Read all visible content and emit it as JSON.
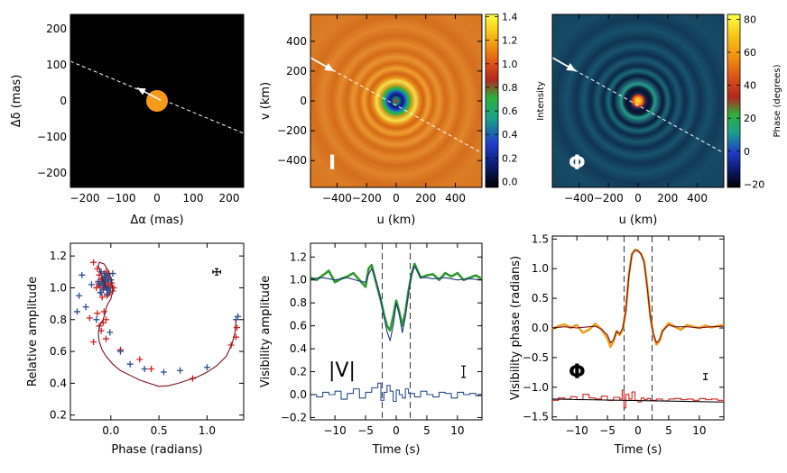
{
  "chart_data": [
    {
      "id": "sky",
      "type": "image",
      "xlabel": "Δα (mas)",
      "ylabel": "Δδ (mas)",
      "xlim": [
        -240,
        240
      ],
      "ylim": [
        -240,
        240
      ],
      "xticks": [
        -200,
        -100,
        0,
        100,
        200
      ],
      "yticks": [
        -200,
        -100,
        0,
        100,
        200
      ],
      "tick_labels_x": [
        "−200",
        "−100",
        "0",
        "100",
        "200"
      ],
      "tick_labels_y": [
        "−200",
        "−100",
        "0",
        "100",
        "200"
      ],
      "disk": {
        "cx": 0,
        "cy": 0,
        "r": 30,
        "color": "#f59a1a"
      },
      "path_line": [
        [
          -240,
          110
        ],
        [
          240,
          -90
        ]
      ],
      "arrow": {
        "from": [
          10,
          2
        ],
        "to": [
          -55,
          36
        ]
      },
      "background": "#000000"
    },
    {
      "id": "intensity",
      "type": "heatmap",
      "xlabel": "u (km)",
      "ylabel": "v (km)",
      "xlim": [
        -580,
        580
      ],
      "ylim": [
        -580,
        580
      ],
      "xticks": [
        -400,
        -200,
        0,
        200,
        400
      ],
      "yticks": [
        -400,
        -200,
        0,
        200,
        400
      ],
      "tick_labels_x": [
        "−400",
        "−200",
        "0",
        "200",
        "400"
      ],
      "tick_labels_y": [
        "−400",
        "−200",
        "0",
        "200",
        "400"
      ],
      "colorbar": {
        "label": "Intensity",
        "range": [
          -0.05,
          1.42
        ],
        "ticks": [
          1.4,
          1.2,
          1.0,
          0.8,
          0.6,
          0.4,
          0.2,
          0.0
        ],
        "tick_labels": [
          "1.4",
          "1.2",
          "1.0",
          "0.8",
          "0.6",
          "0.4",
          "0.2",
          "0.0"
        ]
      },
      "panel_label": "I",
      "path_line": [
        [
          -580,
          290
        ],
        [
          580,
          -350
        ]
      ],
      "arrow": {
        "from": [
          -580,
          290
        ],
        "to": [
          -420,
          200
        ]
      }
    },
    {
      "id": "phase",
      "type": "heatmap",
      "xlabel": "u (km)",
      "ylabel": "",
      "xlim": [
        -580,
        580
      ],
      "ylim": [
        -580,
        580
      ],
      "xticks": [
        -400,
        -200,
        0,
        200,
        400
      ],
      "tick_labels_x": [
        "−400",
        "−200",
        "0",
        "200",
        "400"
      ],
      "colorbar": {
        "label": "Phase (degrees)",
        "range": [
          -22,
          83
        ],
        "ticks": [
          80,
          60,
          40,
          20,
          0,
          -20
        ],
        "tick_labels": [
          "80",
          "60",
          "40",
          "20",
          "0",
          "−20"
        ]
      },
      "panel_label": "Φ",
      "path_line": [
        [
          -580,
          290
        ],
        [
          580,
          -350
        ]
      ],
      "arrow": {
        "from": [
          -580,
          290
        ],
        "to": [
          -420,
          200
        ]
      }
    },
    {
      "id": "amp-phase",
      "type": "scatter",
      "xlabel": "Phase (radians)",
      "ylabel": "Relative amplitude",
      "xlim": [
        -0.42,
        1.38
      ],
      "ylim": [
        0.17,
        1.28
      ],
      "xticks": [
        0.0,
        0.5,
        1.0
      ],
      "yticks": [
        0.2,
        0.4,
        0.6,
        0.8,
        1.0,
        1.2
      ],
      "tick_labels_x": [
        "0.0",
        "0.5",
        "1.0"
      ],
      "tick_labels_y": [
        "0.2",
        "0.4",
        "0.6",
        "0.8",
        "1.0",
        "1.2"
      ],
      "errorbar": {
        "x": 1.1,
        "y": 1.1,
        "dx": 0.04,
        "dy": 0.02
      },
      "series": [
        {
          "name": "red points",
          "color": "#d32020",
          "x": [
            -0.18,
            -0.14,
            -0.12,
            -0.1,
            -0.13,
            -0.15,
            -0.09,
            -0.05,
            -0.02,
            0.0,
            -0.04,
            -0.07,
            -0.01,
            0.02,
            -0.06,
            -0.03,
            0.01,
            -0.11,
            -0.08,
            -0.03,
            -0.06,
            -0.02,
            -0.05,
            0.03,
            -0.09,
            -0.04,
            -0.02,
            -0.07,
            -0.14,
            -0.22,
            -0.08,
            -0.05,
            -0.12,
            -0.1,
            -0.05,
            -0.18,
            0.1,
            0.3,
            0.42,
            0.85,
            1.25,
            1.3,
            1.31
          ],
          "y": [
            1.16,
            1.12,
            1.08,
            1.05,
            1.03,
            1.0,
            1.06,
            1.04,
            1.02,
            1.01,
            0.99,
            1.0,
            0.97,
            0.98,
            1.02,
            1.05,
            1.03,
            1.01,
            0.99,
            0.96,
            1.07,
            1.09,
            1.1,
            1.0,
            0.94,
            0.95,
            1.03,
            0.85,
            0.84,
            0.81,
            0.78,
            0.8,
            0.76,
            0.73,
            0.68,
            0.66,
            0.61,
            0.55,
            0.49,
            0.43,
            0.64,
            0.69,
            0.75
          ]
        },
        {
          "name": "blue points",
          "color": "#2a4d8c",
          "x": [
            -0.3,
            -0.2,
            -0.33,
            -0.26,
            -0.35,
            -0.1,
            -0.07,
            -0.04,
            -0.02,
            0.0,
            -0.06,
            -0.09,
            -0.12,
            -0.05,
            -0.03,
            -0.08,
            -0.01,
            -0.11,
            -0.04,
            -0.06,
            -0.02,
            -0.13,
            -0.08,
            -0.05,
            -0.03,
            -0.1,
            0.02,
            -0.07,
            -0.15,
            -0.01,
            0.1,
            0.2,
            0.35,
            0.55,
            0.72,
            1.0,
            1.3,
            1.32
          ],
          "y": [
            1.08,
            1.02,
            0.95,
            0.88,
            0.85,
            1.1,
            1.09,
            1.08,
            1.06,
            1.05,
            1.04,
            1.03,
            1.02,
            1.01,
            1.0,
            0.99,
            0.98,
            0.97,
            0.96,
            1.07,
            1.05,
            1.04,
            1.02,
            1.0,
            0.99,
            0.97,
            1.09,
            1.06,
            0.8,
            0.72,
            0.6,
            0.52,
            0.49,
            0.47,
            0.48,
            0.5,
            0.8,
            0.82
          ]
        },
        {
          "name": "model",
          "color": "#7a1020",
          "x": [
            -0.05,
            -0.08,
            -0.11,
            -0.13,
            -0.12,
            -0.07,
            -0.02,
            0.01,
            0.02,
            0.0,
            -0.03,
            -0.05,
            -0.06,
            -0.07,
            -0.08,
            -0.1,
            -0.12,
            -0.13,
            -0.12,
            -0.09,
            -0.05,
            0.02,
            0.1,
            0.2,
            0.3,
            0.4,
            0.5,
            0.6,
            0.7,
            0.8,
            0.9,
            1.0,
            1.1,
            1.2,
            1.26,
            1.29,
            1.3
          ],
          "y": [
            1.0,
            1.05,
            1.1,
            1.14,
            1.16,
            1.15,
            1.1,
            1.04,
            0.98,
            0.93,
            0.9,
            0.87,
            0.84,
            0.82,
            0.8,
            0.78,
            0.75,
            0.71,
            0.66,
            0.61,
            0.57,
            0.52,
            0.48,
            0.45,
            0.42,
            0.4,
            0.38,
            0.385,
            0.4,
            0.42,
            0.44,
            0.47,
            0.51,
            0.57,
            0.65,
            0.72,
            0.8
          ]
        }
      ]
    },
    {
      "id": "vis-amp",
      "type": "line",
      "xlabel": "Time (s)",
      "ylabel": "Visibility amplitude",
      "xlim": [
        -14,
        14
      ],
      "ylim": [
        -0.22,
        1.32
      ],
      "xticks": [
        -10,
        -5,
        0,
        5,
        10
      ],
      "yticks": [
        -0.2,
        0.0,
        0.2,
        0.4,
        0.6,
        0.8,
        1.0,
        1.2
      ],
      "tick_labels_x": [
        "−10",
        "−5",
        "0",
        "5",
        "10"
      ],
      "tick_labels_y": [
        "−0.2",
        "0.0",
        "0.2",
        "0.4",
        "0.6",
        "0.8",
        "1.0",
        "1.2"
      ],
      "panel_label": "|V|",
      "vlines": [
        -2.3,
        2.3
      ],
      "errorbar": {
        "x": 11,
        "y": 0.2,
        "dy": 0.05
      },
      "series": [
        {
          "name": "data",
          "color": "#2f9a2f",
          "x": [
            -14,
            -13,
            -12,
            -11,
            -10,
            -9,
            -8,
            -7,
            -6,
            -5,
            -4.5,
            -4,
            -3.5,
            -3,
            -2.5,
            -2,
            -1.5,
            -1,
            -0.5,
            0,
            0.5,
            1,
            1.5,
            2,
            2.5,
            3,
            3.5,
            4,
            5,
            6,
            7,
            8,
            9,
            10,
            11,
            12,
            13,
            14
          ],
          "y": [
            1.02,
            1.0,
            1.04,
            1.08,
            0.98,
            1.01,
            1.03,
            1.06,
            1.0,
            0.94,
            1.1,
            1.13,
            1.02,
            0.92,
            0.82,
            0.7,
            0.6,
            0.56,
            0.68,
            0.82,
            0.72,
            0.6,
            0.72,
            0.9,
            1.05,
            1.14,
            1.08,
            1.02,
            1.04,
            1.05,
            1.0,
            1.06,
            1.03,
            1.06,
            1.0,
            1.02,
            1.04,
            1.01
          ]
        },
        {
          "name": "model",
          "color": "#1c3c78",
          "x": [
            -14,
            -12,
            -10,
            -8,
            -6,
            -5,
            -4.5,
            -4,
            -3.5,
            -3,
            -2.5,
            -2,
            -1.5,
            -1,
            -0.5,
            0,
            0.5,
            1,
            1.5,
            2,
            2.5,
            3,
            3.5,
            4,
            5,
            6,
            8,
            10,
            12,
            14
          ],
          "y": [
            1.01,
            1.02,
            1.0,
            1.02,
            0.99,
            0.98,
            1.05,
            1.1,
            1.04,
            0.94,
            0.82,
            0.68,
            0.55,
            0.47,
            0.6,
            0.8,
            0.7,
            0.54,
            0.68,
            0.88,
            1.05,
            1.12,
            1.07,
            1.02,
            1.02,
            1.01,
            1.02,
            1.0,
            1.01,
            1.0
          ]
        },
        {
          "name": "residual",
          "color": "#2a4d8c",
          "step": true,
          "x": [
            -14,
            -13,
            -12,
            -11,
            -10,
            -9,
            -8,
            -7,
            -6,
            -5,
            -4,
            -3,
            -2.5,
            -2,
            -1.5,
            -1,
            -0.5,
            0,
            0.5,
            1,
            1.5,
            2,
            3,
            4,
            5,
            6,
            7,
            8,
            9,
            10,
            11,
            12,
            13,
            14
          ],
          "y": [
            0.0,
            -0.02,
            0.02,
            0.0,
            0.03,
            -0.04,
            0.01,
            0.05,
            -0.03,
            0.02,
            0.06,
            0.1,
            -0.05,
            0.02,
            0.08,
            0.03,
            -0.06,
            0.04,
            0.0,
            -0.03,
            0.05,
            0.01,
            -0.02,
            0.03,
            0.0,
            -0.02,
            0.02,
            0.01,
            -0.03,
            0.02,
            0.0,
            0.01,
            -0.01,
            0.0
          ]
        }
      ]
    },
    {
      "id": "vis-phase",
      "type": "line",
      "xlabel": "Time (s)",
      "ylabel": "Visibility phase (radians)",
      "xlim": [
        -14,
        14
      ],
      "ylim": [
        -1.55,
        1.55
      ],
      "xticks": [
        -10,
        -5,
        0,
        5,
        10
      ],
      "yticks": [
        -1.5,
        -1.0,
        -0.5,
        0.0,
        0.5,
        1.0,
        1.5
      ],
      "tick_labels_x": [
        "−10",
        "−5",
        "0",
        "5",
        "10"
      ],
      "tick_labels_y": [
        "−1.5",
        "−1.0",
        "−0.5",
        "0.0",
        "0.5",
        "1.0",
        "1.5"
      ],
      "panel_label": "Φ",
      "vlines": [
        -2.3,
        2.3
      ],
      "errorbar": {
        "x": 11,
        "y": -0.82,
        "dy": 0.05
      },
      "series": [
        {
          "name": "data",
          "color": "#f0a020",
          "x": [
            -14,
            -13,
            -12,
            -11,
            -10,
            -9,
            -8,
            -7,
            -6,
            -5,
            -4.5,
            -4,
            -3.5,
            -3,
            -2.5,
            -2,
            -1.5,
            -1,
            -0.5,
            0,
            0.5,
            1,
            1.5,
            2,
            2.5,
            3,
            3.5,
            4,
            5,
            6,
            7,
            8,
            9,
            10,
            11,
            12,
            13,
            14
          ],
          "y": [
            -0.02,
            0.03,
            0.06,
            0.0,
            0.05,
            -0.08,
            -0.03,
            0.07,
            -0.02,
            -0.18,
            -0.32,
            -0.22,
            -0.05,
            -0.12,
            -0.02,
            0.3,
            0.9,
            1.25,
            1.32,
            1.3,
            1.25,
            1.12,
            0.7,
            0.2,
            -0.12,
            -0.28,
            -0.22,
            -0.05,
            0.08,
            0.02,
            -0.03,
            0.05,
            0.02,
            0.0,
            0.04,
            0.01,
            0.03,
            0.05
          ]
        },
        {
          "name": "model",
          "color": "#7a1020",
          "x": [
            -14,
            -12,
            -10,
            -8,
            -7,
            -6,
            -5,
            -4.5,
            -4,
            -3.5,
            -3,
            -2.5,
            -2,
            -1.5,
            -1,
            -0.5,
            0,
            0.5,
            1,
            1.5,
            2,
            2.5,
            3,
            3.5,
            4,
            5,
            6,
            8,
            10,
            12,
            14
          ],
          "y": [
            0.0,
            0.02,
            0.0,
            0.02,
            0.03,
            -0.02,
            -0.12,
            -0.25,
            -0.2,
            -0.06,
            -0.1,
            0.0,
            0.28,
            0.88,
            1.24,
            1.31,
            1.3,
            1.24,
            1.1,
            0.68,
            0.18,
            -0.1,
            -0.25,
            -0.2,
            -0.05,
            0.05,
            0.02,
            0.02,
            0.0,
            0.02,
            0.03
          ]
        },
        {
          "name": "residual",
          "color": "#d32020",
          "step": true,
          "x": [
            -14,
            -13,
            -12,
            -11,
            -10,
            -9,
            -8,
            -7,
            -6,
            -5,
            -4,
            -3,
            -2.6,
            -2.3,
            -2.0,
            -1.5,
            -1,
            -0.5,
            0,
            0.5,
            1,
            1.5,
            2,
            3,
            4,
            5,
            6,
            7,
            8,
            9,
            10,
            11,
            12,
            13,
            14
          ],
          "y": [
            -1.22,
            -1.18,
            -1.2,
            -1.16,
            -1.21,
            -1.12,
            -1.18,
            -1.2,
            -1.15,
            -1.22,
            -1.17,
            -1.2,
            -1.05,
            -1.35,
            -1.12,
            -1.2,
            -1.08,
            -1.22,
            -1.25,
            -1.18,
            -1.21,
            -1.19,
            -1.22,
            -1.2,
            -1.23,
            -1.2,
            -1.19,
            -1.21,
            -1.2,
            -1.22,
            -1.19,
            -1.21,
            -1.2,
            -1.22,
            -1.2
          ]
        },
        {
          "name": "zero",
          "color": "#000000",
          "x": [
            -14,
            14
          ],
          "y": [
            -1.2,
            -1.25
          ]
        }
      ]
    }
  ]
}
